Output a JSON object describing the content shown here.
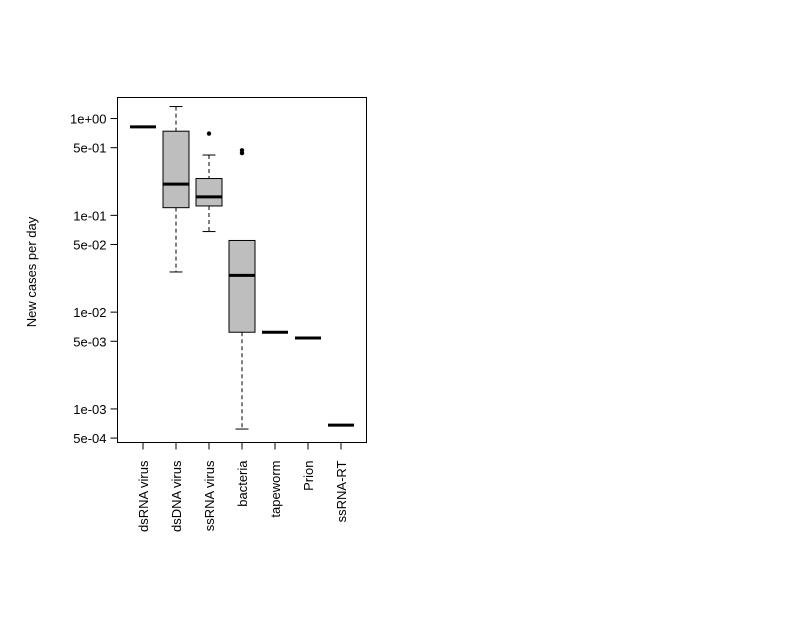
{
  "chart_data": {
    "type": "boxplot",
    "ylabel": "New cases per day",
    "xlabel": "",
    "title": "",
    "yscale": "log",
    "ylim": [
      0.00045,
      1.65
    ],
    "yticks": [
      {
        "value": 1,
        "label": "1e+00"
      },
      {
        "value": 0.5,
        "label": "5e-01"
      },
      {
        "value": 0.1,
        "label": "1e-01"
      },
      {
        "value": 0.05,
        "label": "5e-02"
      },
      {
        "value": 0.01,
        "label": "1e-02"
      },
      {
        "value": 0.005,
        "label": "5e-03"
      },
      {
        "value": 0.001,
        "label": "1e-03"
      },
      {
        "value": 0.0005,
        "label": "5e-04"
      }
    ],
    "categories": [
      "dsRNA virus",
      "dsDNA virus",
      "ssRNA virus",
      "bacteria",
      "tapeworm",
      "Prion",
      "ssRNA-RT"
    ],
    "boxes": [
      {
        "min": 0.82,
        "q1": 0.82,
        "median": 0.82,
        "q3": 0.82,
        "max": 0.82,
        "outliers": []
      },
      {
        "min": 0.026,
        "q1": 0.12,
        "median": 0.21,
        "q3": 0.74,
        "max": 1.33,
        "outliers": []
      },
      {
        "min": 0.068,
        "q1": 0.125,
        "median": 0.155,
        "q3": 0.24,
        "max": 0.42,
        "outliers": [
          0.7
        ]
      },
      {
        "min": 0.00062,
        "q1": 0.0062,
        "median": 0.024,
        "q3": 0.055,
        "max": 0.055,
        "outliers": [
          0.44,
          0.47
        ]
      },
      {
        "min": 0.0062,
        "q1": 0.0062,
        "median": 0.0062,
        "q3": 0.0062,
        "max": 0.0062,
        "outliers": []
      },
      {
        "min": 0.0054,
        "q1": 0.0054,
        "median": 0.0054,
        "q3": 0.0054,
        "max": 0.0054,
        "outliers": []
      },
      {
        "min": 0.00068,
        "q1": 0.00068,
        "median": 0.00068,
        "q3": 0.00068,
        "max": 0.00068,
        "outliers": []
      }
    ],
    "box_fill": "#bebebe",
    "line_color": "#000000",
    "grid": false,
    "legend": "none"
  }
}
